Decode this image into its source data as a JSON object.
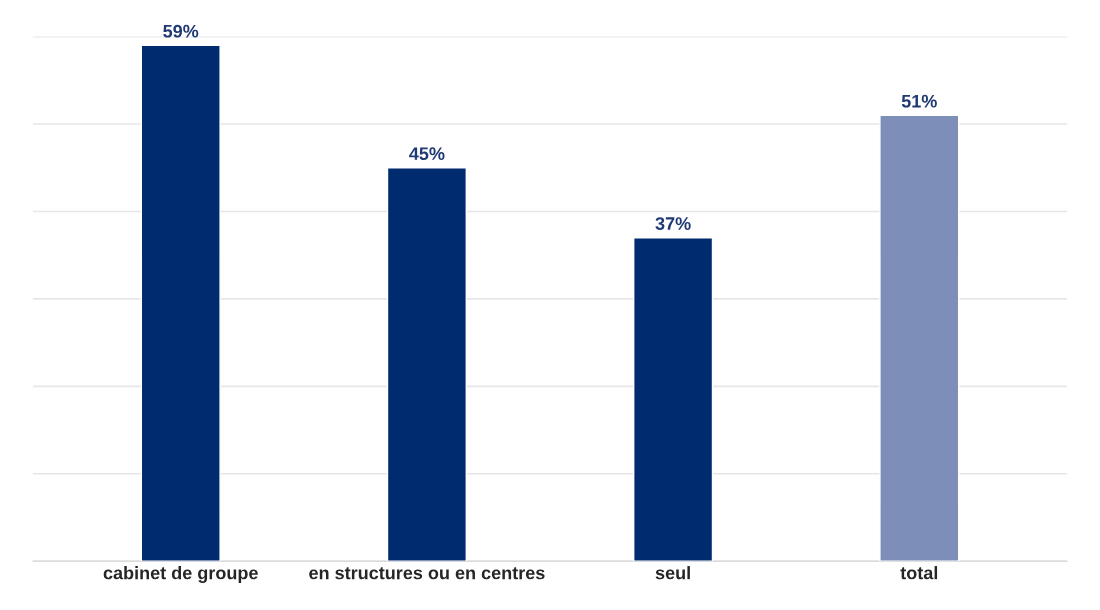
{
  "chart_data": {
    "type": "bar",
    "categories": [
      "cabinet de groupe",
      "en structures ou en centres",
      "seul",
      "total"
    ],
    "values": [
      59,
      45,
      37,
      51
    ],
    "colors": [
      "#002b6e",
      "#002b6e",
      "#002b6e",
      "#7d8fb8"
    ],
    "value_labels": [
      "59%",
      "45%",
      "37%",
      "51%"
    ],
    "ylim": [
      0,
      60
    ],
    "yticks": [
      {
        "value": 0,
        "label": null
      },
      {
        "value": 10,
        "label": null
      },
      {
        "value": 20,
        "label": null
      },
      {
        "value": 30,
        "label": null
      },
      {
        "value": 40,
        "label": null
      },
      {
        "value": 50,
        "label": null
      },
      {
        "value": 60,
        "label": null
      }
    ],
    "grid": "y",
    "tick_labels": "x"
  }
}
